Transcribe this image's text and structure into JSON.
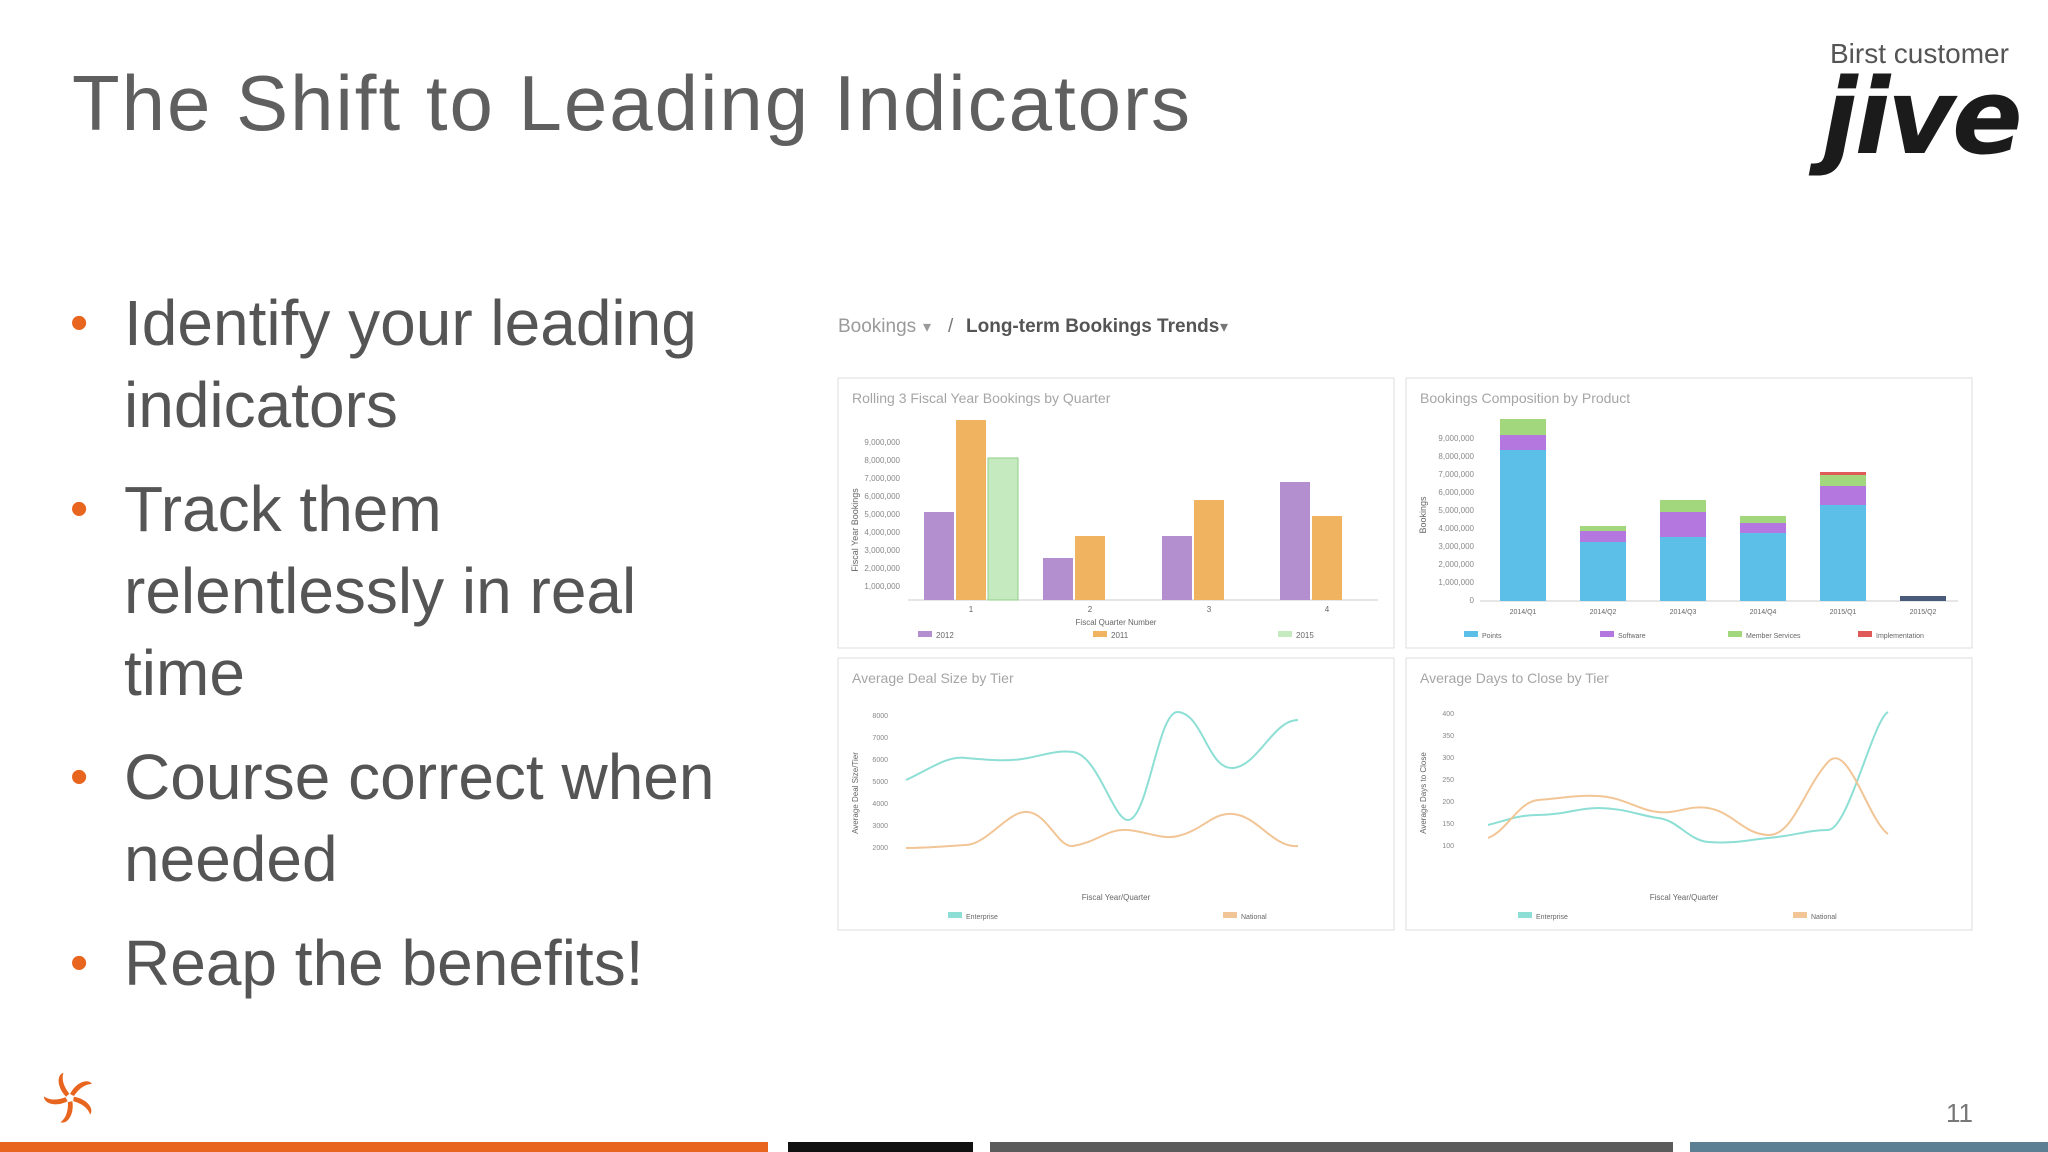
{
  "slide": {
    "title": "The Shift to Leading Indicators",
    "customer_caption": "Birst customer",
    "customer_logo_text": "jive",
    "page_number": "11",
    "bullets": [
      "Identify your leading indicators",
      "Track them relentlessly in real time",
      "Course correct when needed",
      "Reap the benefits!"
    ],
    "bullet_color": "#e8651f",
    "footer_colors": [
      "#e8651f",
      "#111111",
      "#5b5b5b",
      "#5c7f93"
    ]
  },
  "dashboard": {
    "breadcrumb_root": "Bookings",
    "breadcrumb_separator": "/",
    "breadcrumb_current": "Long-term Bookings Trends",
    "panels": [
      {
        "title": "Rolling 3 Fiscal Year Bookings by Quarter",
        "ylabel": "Fiscal Year Bookings",
        "xlabel": "Fiscal Quarter Number",
        "yticks": [
          "9,000,000",
          "8,000,000",
          "7,000,000",
          "6,000,000",
          "5,000,000",
          "4,000,000",
          "3,000,000",
          "2,000,000",
          "1,000,000"
        ],
        "categories": [
          "1",
          "2",
          "3",
          "4"
        ],
        "legend": [
          "2012",
          "2011",
          "2015"
        ]
      },
      {
        "title": "Bookings Composition by Product",
        "ylabel": "Bookings",
        "yticks": [
          "9,000,000",
          "8,000,000",
          "7,000,000",
          "6,000,000",
          "5,000,000",
          "4,000,000",
          "3,000,000",
          "2,000,000",
          "1,000,000",
          "0"
        ],
        "categories": [
          "2014/Q1",
          "2014/Q2",
          "2014/Q3",
          "2014/Q4",
          "2015/Q1",
          "2015/Q2"
        ],
        "legend": [
          "Points",
          "Software",
          "Member Services",
          "Implementation"
        ]
      },
      {
        "title": "Average Deal Size by Tier",
        "ylabel": "Average Deal Size/Tier",
        "xlabel": "Fiscal Year/Quarter",
        "yticks": [
          "8000",
          "7000",
          "6000",
          "5000",
          "4000",
          "3000",
          "2000"
        ],
        "legend": [
          "Enterprise",
          "National"
        ]
      },
      {
        "title": "Average Days to Close by Tier",
        "ylabel": "Average Days to Close",
        "xlabel": "Fiscal Year/Quarter",
        "yticks": [
          "400",
          "350",
          "300",
          "250",
          "200",
          "150",
          "100"
        ],
        "legend": [
          "Enterprise",
          "National"
        ]
      }
    ]
  }
}
